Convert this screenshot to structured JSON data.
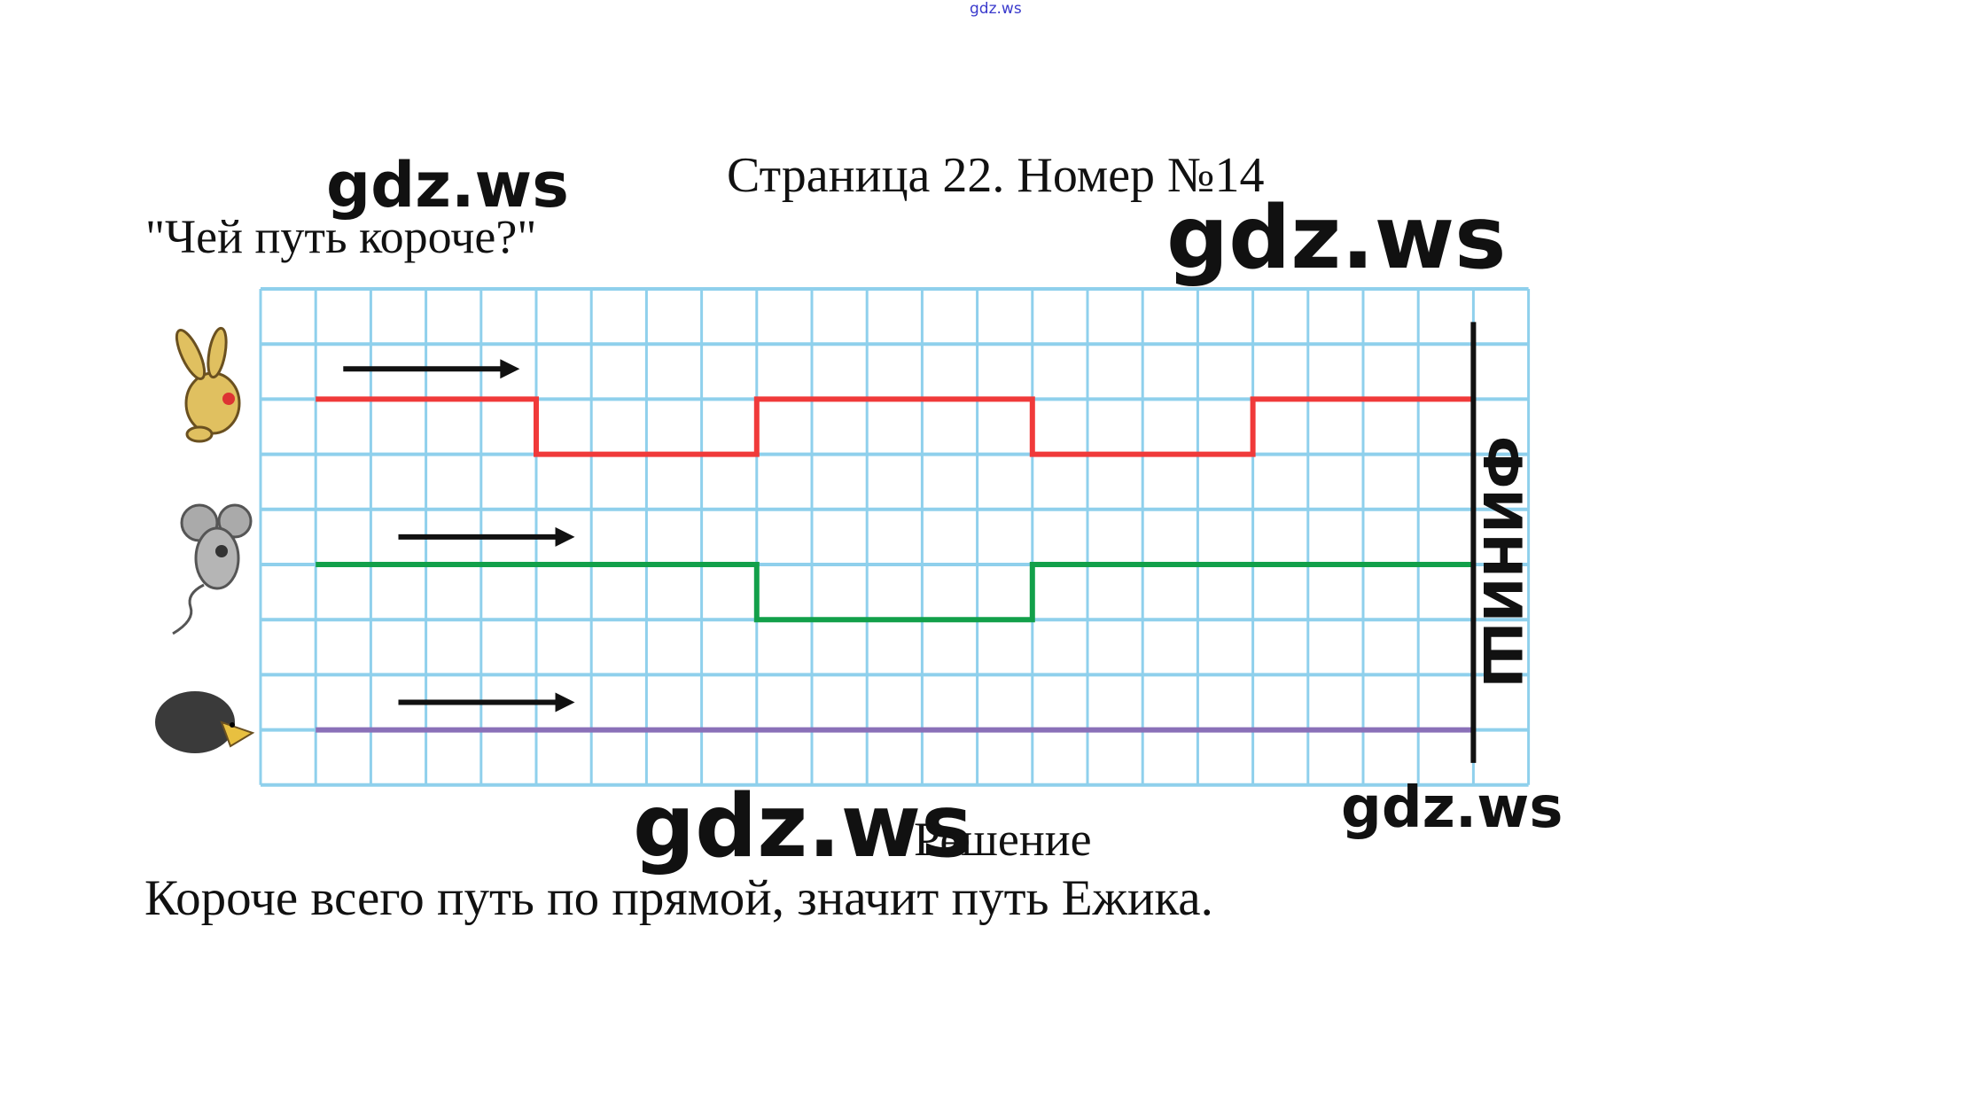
{
  "watermarks": [
    "gdz.ws",
    "gdz.ws",
    "gdz.ws",
    "gdz.ws",
    "gdz.ws"
  ],
  "header": {
    "title": "Страница 22. Номер №14"
  },
  "task": {
    "question": "\"Чей путь короче?\""
  },
  "figure": {
    "finish_label": "ФИНИШ",
    "grid": {
      "columns": 23,
      "rows": 9
    },
    "paths": [
      {
        "animal": "rabbit",
        "color": "#f03a3a",
        "points": [
          [
            1,
            2
          ],
          [
            5,
            2
          ],
          [
            5,
            3
          ],
          [
            9,
            3
          ],
          [
            9,
            2
          ],
          [
            14,
            2
          ],
          [
            14,
            3
          ],
          [
            18,
            3
          ],
          [
            18,
            2
          ],
          [
            22,
            2
          ]
        ]
      },
      {
        "animal": "mouse",
        "color": "#12a04a",
        "points": [
          [
            1,
            5
          ],
          [
            9,
            5
          ],
          [
            9,
            6
          ],
          [
            14,
            6
          ],
          [
            14,
            5
          ],
          [
            22,
            5
          ]
        ]
      },
      {
        "animal": "hedgehog",
        "color": "#8a70b8",
        "points": [
          [
            1,
            8
          ],
          [
            22,
            8
          ]
        ]
      }
    ],
    "grid_color": "#8fd0ec"
  },
  "solution": {
    "label": "Решение",
    "answer": "Короче всего путь по прямой, значит путь Ежика."
  }
}
